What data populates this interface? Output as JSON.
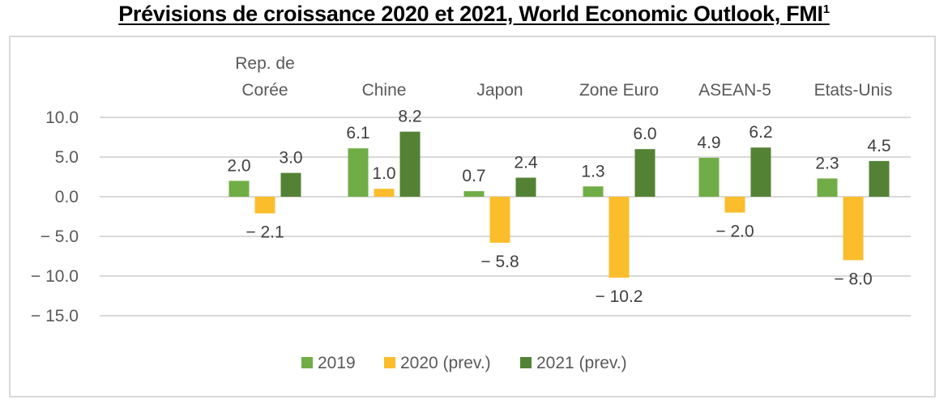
{
  "chart_data": {
    "type": "bar",
    "title": "Prévisions de croissance 2020 et 2021, World Economic Outlook, FMI",
    "title_superscript": "1",
    "xlabel": "",
    "ylabel": "",
    "ylim": [
      -15,
      10
    ],
    "yticks": [
      10,
      5,
      0,
      -5,
      -10,
      -15
    ],
    "ytick_labels": [
      "10.0",
      "5.0",
      "0.0",
      "− 5.0",
      "− 10.0",
      "− 15.0"
    ],
    "grid": true,
    "category_labels_position": "top",
    "legend_position": "bottom",
    "categories": [
      [
        "Rep. de",
        "Corée"
      ],
      [
        "Chine"
      ],
      [
        "Japon"
      ],
      [
        "Zone Euro"
      ],
      [
        "ASEAN-5"
      ],
      [
        "Etats-Unis"
      ]
    ],
    "series": [
      {
        "name": "2019",
        "color": "#70ad47",
        "values": [
          2.0,
          6.1,
          0.7,
          1.3,
          4.9,
          2.3
        ],
        "labels": [
          "2.0",
          "6.1",
          "0.7",
          "1.3",
          "4.9",
          "2.3"
        ]
      },
      {
        "name": "2020 (prev.)",
        "color": "#fbbd2c",
        "values": [
          -2.1,
          1.0,
          -5.8,
          -10.2,
          -2.0,
          -8.0
        ],
        "labels": [
          "− 2.1",
          "1.0",
          "− 5.8",
          "− 10.2",
          "− 2.0",
          "− 8.0"
        ]
      },
      {
        "name": "2021 (prev.)",
        "color": "#548235",
        "values": [
          3.0,
          8.2,
          2.4,
          6.0,
          6.2,
          4.5
        ],
        "labels": [
          "3.0",
          "8.2",
          "2.4",
          "6.0",
          "6.2",
          "4.5"
        ]
      }
    ]
  }
}
